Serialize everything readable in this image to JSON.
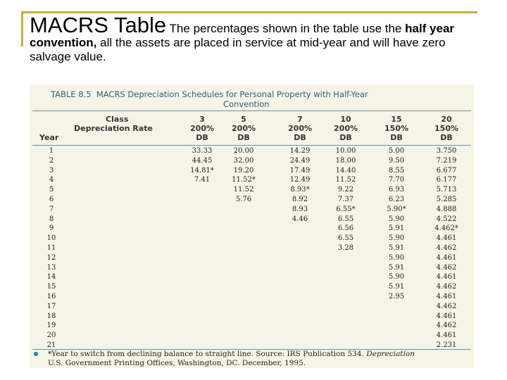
{
  "header": {
    "title": "MACRS Table",
    "intro": [
      "The percentages shown in the table use the ",
      "half year convention,",
      " all the assets are placed in service at mid-year and will have zero salvage value."
    ]
  },
  "table": {
    "caption": [
      "TABLE 8.5",
      "MACRS Depreciation Schedules for Personal Property with Half-Year",
      "Convention"
    ],
    "class_label": "Class",
    "rate_label": "Depreciation Rate",
    "year_label": "Year",
    "columns": [
      {
        "class": "3",
        "rate": "200%",
        "method": "DB"
      },
      {
        "class": "5",
        "rate": "200%",
        "method": "DB"
      },
      {
        "class": "7",
        "rate": "200%",
        "method": "DB"
      },
      {
        "class": "10",
        "rate": "200%",
        "method": "DB"
      },
      {
        "class": "15",
        "rate": "150%",
        "method": "DB"
      },
      {
        "class": "20",
        "rate": "150%",
        "method": "DB"
      }
    ],
    "rows": [
      [
        "1",
        "33.33",
        "20.00",
        "14.29",
        "10.00",
        "5.00",
        "3.750"
      ],
      [
        "2",
        "44.45",
        "32.00",
        "24.49",
        "18.00",
        "9.50",
        "7.219"
      ],
      [
        "3",
        "14.81*",
        "19.20",
        "17.49",
        "14.40",
        "8.55",
        "6.677"
      ],
      [
        "4",
        "7.41",
        "11.52*",
        "12.49",
        "11.52",
        "7.70",
        "6.177"
      ],
      [
        "5",
        null,
        "11.52",
        "8.93*",
        "9.22",
        "6.93",
        "5.713"
      ],
      [
        "6",
        null,
        "5.76",
        "8.92",
        "7.37",
        "6.23",
        "5.285"
      ],
      [
        "7",
        null,
        null,
        "8.93",
        "6.55*",
        "5.90*",
        "4.888"
      ],
      [
        "8",
        null,
        null,
        "4.46",
        "6.55",
        "5.90",
        "4.522"
      ],
      [
        "9",
        null,
        null,
        null,
        "6.56",
        "5.91",
        "4.462*"
      ],
      [
        "10",
        null,
        null,
        null,
        "6.55",
        "5.90",
        "4.461"
      ],
      [
        "11",
        null,
        null,
        null,
        "3.28",
        "5.91",
        "4.462"
      ],
      [
        "12",
        null,
        null,
        null,
        null,
        "5.90",
        "4.461"
      ],
      [
        "13",
        null,
        null,
        null,
        null,
        "5.91",
        "4.462"
      ],
      [
        "14",
        null,
        null,
        null,
        null,
        "5.90",
        "4.461"
      ],
      [
        "15",
        null,
        null,
        null,
        null,
        "5.91",
        "4.462"
      ],
      [
        "16",
        null,
        null,
        null,
        null,
        "2.95",
        "4.461"
      ],
      [
        "17",
        null,
        null,
        null,
        null,
        null,
        "4.462"
      ],
      [
        "18",
        null,
        null,
        null,
        null,
        null,
        "4.461"
      ],
      [
        "19",
        null,
        null,
        null,
        null,
        null,
        "4.462"
      ],
      [
        "20",
        null,
        null,
        null,
        null,
        null,
        "4.461"
      ],
      [
        "21",
        null,
        null,
        null,
        null,
        null,
        "2.231"
      ]
    ],
    "footnote": [
      "*Year to switch from declining balance to straight line. Source: IRS Publication 534. ",
      "Depreciation",
      " U.S. Government Printing Offices, Washington, DC. December, 1995."
    ]
  }
}
